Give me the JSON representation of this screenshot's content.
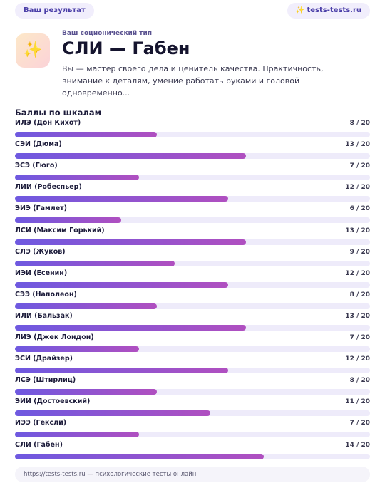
{
  "header": {
    "badge": "Ваш результат",
    "site": "✨ tests-tests.ru"
  },
  "result": {
    "icon": "✨",
    "subtitle": "Ваш соционический тип",
    "title": "СЛИ — Габен",
    "description": "Вы — мастер своего дела и ценитель качества. Практичность, внимание к деталям, умение работать руками и головой одновременно..."
  },
  "scales": {
    "title": "Баллы по шкалам",
    "max": 20,
    "items": [
      {
        "name": "ИЛЭ (Дон Кихот)",
        "value": 8,
        "label": "8 / 20"
      },
      {
        "name": "СЭИ (Дюма)",
        "value": 13,
        "label": "13 / 20"
      },
      {
        "name": "ЭСЭ (Гюго)",
        "value": 7,
        "label": "7 / 20"
      },
      {
        "name": "ЛИИ (Робеспьер)",
        "value": 12,
        "label": "12 / 20"
      },
      {
        "name": "ЭИЭ (Гамлет)",
        "value": 6,
        "label": "6 / 20"
      },
      {
        "name": "ЛСИ (Максим Горький)",
        "value": 13,
        "label": "13 / 20"
      },
      {
        "name": "СЛЭ (Жуков)",
        "value": 9,
        "label": "9 / 20"
      },
      {
        "name": "ИЭИ (Есенин)",
        "value": 12,
        "label": "12 / 20"
      },
      {
        "name": "СЭЭ (Наполеон)",
        "value": 8,
        "label": "8 / 20"
      },
      {
        "name": "ИЛИ (Бальзак)",
        "value": 13,
        "label": "13 / 20"
      },
      {
        "name": "ЛИЭ (Джек Лондон)",
        "value": 7,
        "label": "7 / 20"
      },
      {
        "name": "ЭСИ (Драйзер)",
        "value": 12,
        "label": "12 / 20"
      },
      {
        "name": "ЛСЭ (Штирлиц)",
        "value": 8,
        "label": "8 / 20"
      },
      {
        "name": "ЭИИ (Достоевский)",
        "value": 11,
        "label": "11 / 20"
      },
      {
        "name": "ИЭЭ (Гексли)",
        "value": 7,
        "label": "7 / 20"
      },
      {
        "name": "СЛИ (Габен)",
        "value": 14,
        "label": "14 / 20"
      }
    ]
  },
  "footer": {
    "text": "https://tests-tests.ru — психологические тесты онлайн"
  }
}
